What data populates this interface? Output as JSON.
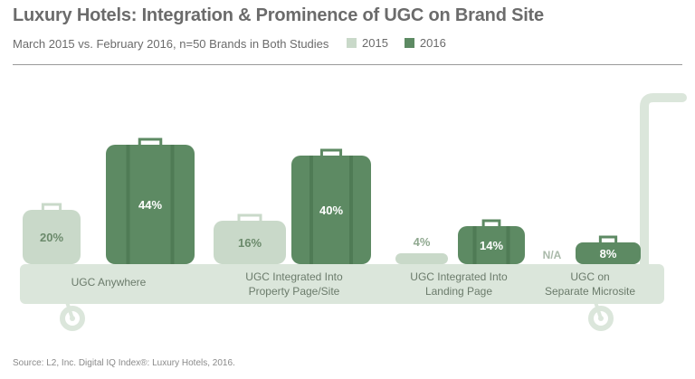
{
  "title": "Luxury Hotels: Integration & Prominence of UGC on Brand Site",
  "subtitle": "March 2015 vs. February 2016, n=50 Brands in Both Studies",
  "legend": [
    {
      "label": "2015",
      "color": "#c9d9c9"
    },
    {
      "label": "2016",
      "color": "#5d8a63"
    }
  ],
  "source": "Source: L2, Inc. Digital IQ Index®: Luxury Hotels, 2016.",
  "colors": {
    "y2015": "#c9d9c9",
    "y2016": "#5d8a63",
    "platform": "#dbe6db",
    "text2015": "#8fa88f"
  },
  "chart_data": {
    "type": "bar",
    "title": "Luxury Hotels: Integration & Prominence of UGC on Brand Site",
    "categories": [
      [
        "UGC Anywhere"
      ],
      [
        "UGC Integrated Into",
        "Property Page/Site"
      ],
      [
        "UGC Integrated Into",
        "Landing Page"
      ],
      [
        "UGC on",
        "Separate Microsite"
      ]
    ],
    "series": [
      {
        "name": "2015",
        "values": [
          20,
          16,
          4,
          null
        ],
        "labels": [
          "20%",
          "16%",
          "4%",
          "N/A"
        ]
      },
      {
        "name": "2016",
        "values": [
          44,
          40,
          14,
          8
        ],
        "labels": [
          "44%",
          "40%",
          "14%",
          "8%"
        ]
      }
    ],
    "ylim": [
      0,
      44
    ],
    "legend_position": "top"
  }
}
